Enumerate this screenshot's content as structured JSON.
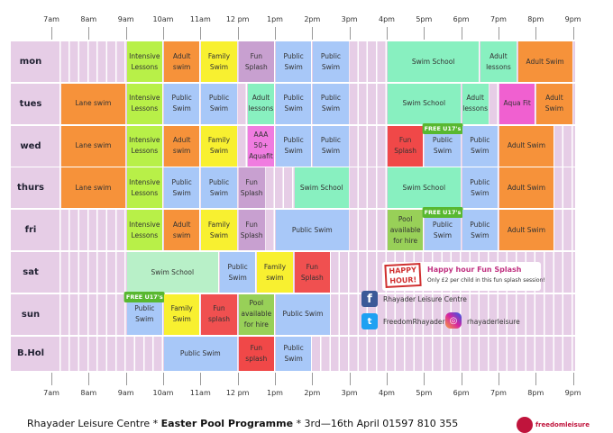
{
  "times": [
    "7am",
    "8am",
    "9am",
    "10am",
    "11am",
    "12 pm",
    "1pm",
    "2pm",
    "3pm",
    "4pm",
    "5pm",
    "6pm",
    "7pm",
    "8pm",
    "9pm"
  ],
  "rows": [
    {
      "day": "mon",
      "sessions": [
        {
          "start": 9,
          "end": 10,
          "label": "Intensive Lessons",
          "color": "#b8f048"
        },
        {
          "start": 10,
          "end": 11,
          "label": "Adult swim",
          "color": "#f6923a"
        },
        {
          "start": 11,
          "end": 12,
          "label": "Family Swim",
          "color": "#f8f030"
        },
        {
          "start": 12,
          "end": 13,
          "label": "Fun Splash",
          "color": "#c8a0d0"
        },
        {
          "start": 13,
          "end": 14,
          "label": "Public Swim",
          "color": "#a8c8f8"
        },
        {
          "start": 14,
          "end": 15,
          "label": "Public Swim",
          "color": "#a8c8f8"
        },
        {
          "start": 16,
          "end": 18.5,
          "label": "Swim School",
          "color": "#88f0c0"
        },
        {
          "start": 18.5,
          "end": 19.5,
          "label": "Adult lessons",
          "color": "#88f0c0"
        },
        {
          "start": 19.5,
          "end": 21,
          "label": "Adult Swim",
          "color": "#f6923a"
        }
      ]
    },
    {
      "day": "tues",
      "sessions": [
        {
          "start": 7.25,
          "end": 9,
          "label": "Lane swim",
          "color": "#f6923a"
        },
        {
          "start": 9,
          "end": 10,
          "label": "Intensive Lessons",
          "color": "#b8f048"
        },
        {
          "start": 10,
          "end": 11,
          "label": "Public Swim",
          "color": "#a8c8f8"
        },
        {
          "start": 11,
          "end": 12,
          "label": "Public Swim",
          "color": "#a8c8f8"
        },
        {
          "start": 12.25,
          "end": 13,
          "label": "Adult lessons",
          "color": "#88f0c0"
        },
        {
          "start": 13,
          "end": 14,
          "label": "Public Swim",
          "color": "#a8c8f8"
        },
        {
          "start": 14,
          "end": 15,
          "label": "Public Swim",
          "color": "#a8c8f8"
        },
        {
          "start": 16,
          "end": 18,
          "label": "Swim School",
          "color": "#88f0c0"
        },
        {
          "start": 18,
          "end": 18.75,
          "label": "Adult lessons",
          "color": "#88f0c0"
        },
        {
          "start": 19,
          "end": 20,
          "label": "Aqua Fit",
          "color": "#f060d0"
        },
        {
          "start": 20,
          "end": 21,
          "label": "Adult Swim",
          "color": "#f6923a"
        }
      ]
    },
    {
      "day": "wed",
      "sessions": [
        {
          "start": 7.25,
          "end": 9,
          "label": "Lane swim",
          "color": "#f6923a"
        },
        {
          "start": 9,
          "end": 10,
          "label": "Intensive Lessons",
          "color": "#b8f048"
        },
        {
          "start": 10,
          "end": 11,
          "label": "Adult swim",
          "color": "#f6923a"
        },
        {
          "start": 11,
          "end": 12,
          "label": "Family Swim",
          "color": "#f8f030"
        },
        {
          "start": 12.25,
          "end": 13,
          "label": "AAA 50+ Aquafit",
          "color": "#f07ce0"
        },
        {
          "start": 13,
          "end": 14,
          "label": "Public Swim",
          "color": "#a8c8f8"
        },
        {
          "start": 14,
          "end": 15,
          "label": "Public Swim",
          "color": "#a8c8f8"
        },
        {
          "start": 16,
          "end": 17,
          "label": "Fun Splash",
          "color": "#f04848"
        },
        {
          "start": 17,
          "end": 18,
          "label": "Public Swim",
          "color": "#a8c8f8",
          "badge": "FREE U17's"
        },
        {
          "start": 18,
          "end": 19,
          "label": "Public Swim",
          "color": "#a8c8f8"
        },
        {
          "start": 19,
          "end": 20.5,
          "label": "Adult Swim",
          "color": "#f6923a"
        }
      ]
    },
    {
      "day": "thurs",
      "sessions": [
        {
          "start": 7.25,
          "end": 9,
          "label": "Lane swim",
          "color": "#f6923a"
        },
        {
          "start": 9,
          "end": 10,
          "label": "Intensive Lessons",
          "color": "#b8f048"
        },
        {
          "start": 10,
          "end": 11,
          "label": "Public Swim",
          "color": "#a8c8f8"
        },
        {
          "start": 11,
          "end": 12,
          "label": "Public Swim",
          "color": "#a8c8f8"
        },
        {
          "start": 12,
          "end": 12.75,
          "label": "Fun Splash",
          "color": "#c8a0d0"
        },
        {
          "start": 13.5,
          "end": 15,
          "label": "Swim School",
          "color": "#88f0c0"
        },
        {
          "start": 16,
          "end": 18,
          "label": "Swim School",
          "color": "#88f0c0"
        },
        {
          "start": 18,
          "end": 19,
          "label": "Public Swim",
          "color": "#a8c8f8"
        },
        {
          "start": 19,
          "end": 20.5,
          "label": "Adult Swim",
          "color": "#f6923a"
        }
      ]
    },
    {
      "day": "fri",
      "sessions": [
        {
          "start": 9,
          "end": 10,
          "label": "Intensive Lessons",
          "color": "#b8f048"
        },
        {
          "start": 10,
          "end": 11,
          "label": "Adult swim",
          "color": "#f6923a"
        },
        {
          "start": 11,
          "end": 12,
          "label": "Family Swim",
          "color": "#f8f030"
        },
        {
          "start": 12,
          "end": 12.75,
          "label": "Fun Splash",
          "color": "#c8a0d0"
        },
        {
          "start": 13,
          "end": 15,
          "label": "Public Swim",
          "color": "#a8c8f8"
        },
        {
          "start": 16,
          "end": 17,
          "label": "Pool available for hire",
          "color": "#98d058"
        },
        {
          "start": 17,
          "end": 18,
          "label": "Public Swim",
          "color": "#a8c8f8",
          "badge": "FREE U17's"
        },
        {
          "start": 18,
          "end": 19,
          "label": "Public Swim",
          "color": "#a8c8f8"
        },
        {
          "start": 19,
          "end": 20.5,
          "label": "Adult Swim",
          "color": "#f6923a"
        }
      ]
    },
    {
      "day": "sat",
      "sessions": [
        {
          "start": 9,
          "end": 11.5,
          "label": "Swim School",
          "color": "#b8f0c8"
        },
        {
          "start": 11.5,
          "end": 12.5,
          "label": "Public Swim",
          "color": "#a8c8f8"
        },
        {
          "start": 12.5,
          "end": 13.5,
          "label": "Family swim",
          "color": "#f8f030"
        },
        {
          "start": 13.5,
          "end": 14.5,
          "label": "Fun Splash",
          "color": "#f05050"
        }
      ]
    },
    {
      "day": "sun",
      "sessions": [
        {
          "start": 9,
          "end": 10,
          "label": "Public Swim",
          "color": "#a8c8f8",
          "badge": "FREE U17's"
        },
        {
          "start": 10,
          "end": 11,
          "label": "Family Swim",
          "color": "#f8f030"
        },
        {
          "start": 11,
          "end": 12,
          "label": "Fun splash",
          "color": "#f05050"
        },
        {
          "start": 12,
          "end": 13,
          "label": "Pool available for hire",
          "color": "#98d058"
        },
        {
          "start": 13,
          "end": 14.5,
          "label": "Public Swim",
          "color": "#a8c8f8"
        }
      ]
    },
    {
      "day": "B.Hol",
      "sessions": [
        {
          "start": 10,
          "end": 12,
          "label": "Public Swim",
          "color": "#a8c8f8"
        },
        {
          "start": 12,
          "end": 13,
          "label": "Fun splash",
          "color": "#f04848"
        },
        {
          "start": 13,
          "end": 14,
          "label": "Public Swim",
          "color": "#a8c8f8"
        }
      ]
    }
  ],
  "promo": {
    "badge": "HAPPY HOUR!",
    "title": "Happy hour Fun Splash",
    "text": "Only £2 per child in this fun splash session!"
  },
  "social": {
    "facebook": "Rhayader Leisure Centre",
    "twitter": "FreedomRhayader",
    "instagram": "rhayaderleisure"
  },
  "footer": {
    "venue": "Rhayader Leisure Centre *",
    "programme": "Easter Pool Programme",
    "dates": "* 3rd—16th April",
    "phone": "01597 810 355"
  },
  "logo": "freedomleisure"
}
